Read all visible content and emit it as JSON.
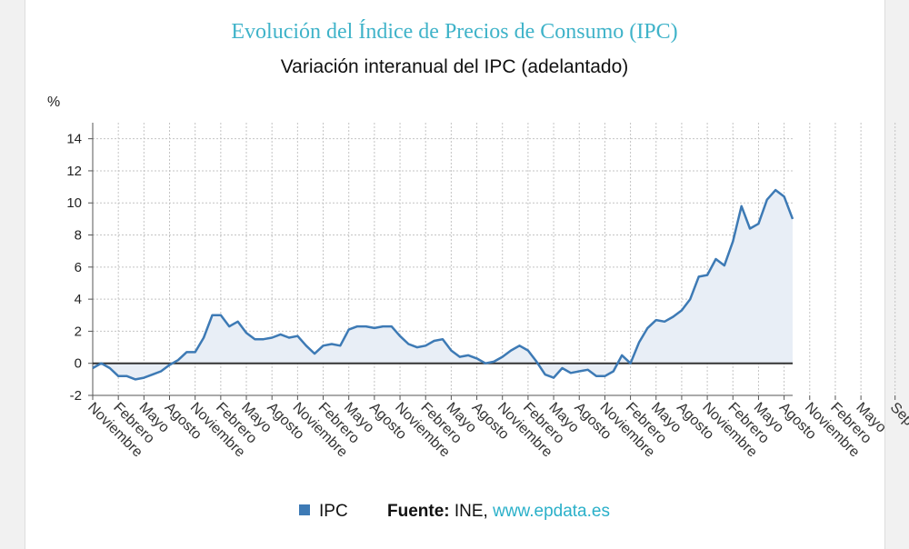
{
  "title": "Evolución del Índice de Precios de Consumo (IPC)",
  "subtitle": "Variación interanual del IPC (adelantado)",
  "colors": {
    "title": "#3fb3c9",
    "series": "#3d7ab5",
    "area": "#e8eef6",
    "zero_line": "#333333",
    "grid": "#c4c4c4",
    "link": "#2ab0c9"
  },
  "legend": {
    "series_label": "IPC",
    "source_label": "Fuente:",
    "source_text": "INE,",
    "source_link": "www.epdata.es"
  },
  "chart_data": {
    "type": "area",
    "title": "Variación interanual del IPC (adelantado)",
    "xlabel": "",
    "ylabel": "%",
    "ylim": [
      -2,
      15
    ],
    "yticks": [
      -2,
      0,
      2,
      4,
      6,
      8,
      10,
      12,
      14
    ],
    "grid": true,
    "legend_position": "bottom",
    "x_tick_labels": [
      "Noviembre",
      "Febrero",
      "Mayo",
      "Agosto",
      "Noviembre",
      "Febrero",
      "Mayo",
      "Agosto",
      "Noviembre",
      "Febrero",
      "Mayo",
      "Agosto",
      "Noviembre",
      "Febrero",
      "Mayo",
      "Agosto",
      "Noviembre",
      "Febrero",
      "Mayo",
      "Agosto",
      "Noviembre",
      "Febrero",
      "Mayo",
      "Agosto",
      "Noviembre",
      "Febrero",
      "Mayo",
      "Agosto",
      "Noviembre",
      "Febrero",
      "Mayo",
      "Septiembre"
    ],
    "x_tick_months": [
      0,
      3,
      6,
      9,
      12,
      15,
      18,
      21,
      24,
      27,
      30,
      33,
      36,
      39,
      42,
      45,
      48,
      51,
      54,
      57,
      60,
      63,
      66,
      69,
      72,
      75,
      78,
      81,
      84,
      87,
      90,
      94
    ],
    "series": [
      {
        "name": "IPC",
        "values": [
          -0.3,
          0.0,
          -0.3,
          -0.8,
          -0.8,
          -1.0,
          -0.9,
          -0.7,
          -0.5,
          -0.1,
          0.2,
          0.7,
          0.7,
          1.6,
          3.0,
          3.0,
          2.3,
          2.6,
          1.9,
          1.5,
          1.5,
          1.6,
          1.8,
          1.6,
          1.7,
          1.1,
          0.6,
          1.1,
          1.2,
          1.1,
          2.1,
          2.3,
          2.3,
          2.2,
          2.3,
          2.3,
          1.7,
          1.2,
          1.0,
          1.1,
          1.4,
          1.5,
          0.8,
          0.4,
          0.5,
          0.3,
          0.0,
          0.1,
          0.4,
          0.8,
          1.1,
          0.8,
          0.1,
          -0.7,
          -0.9,
          -0.3,
          -0.6,
          -0.5,
          -0.4,
          -0.8,
          -0.8,
          -0.5,
          0.5,
          0.0,
          1.3,
          2.2,
          2.7,
          2.6,
          2.9,
          3.3,
          4.0,
          5.4,
          5.5,
          6.5,
          6.1,
          7.6,
          9.8,
          8.4,
          8.7,
          10.2,
          10.8,
          10.4,
          9.0
        ]
      }
    ]
  }
}
